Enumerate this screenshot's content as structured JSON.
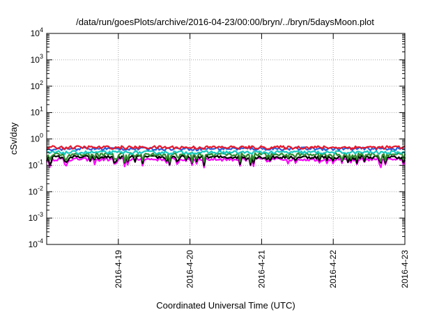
{
  "chart_data": {
    "type": "line",
    "title": "/data/run/goesPlots/archive/2016-04-23/00:00/bryn/../bryn/5daysMoon.plot",
    "xlabel": "Coordinated Universal Time (UTC)",
    "ylabel": "cSv/day",
    "yscale": "log",
    "ylim": [
      0.0001,
      10000
    ],
    "xlim": [
      "2016-04-18 00:00",
      "2016-04-23 00:00"
    ],
    "y_ticks": [
      {
        "base": "10",
        "exp": "-4"
      },
      {
        "base": "10",
        "exp": "-3"
      },
      {
        "base": "10",
        "exp": "-2"
      },
      {
        "base": "10",
        "exp": "-1"
      },
      {
        "base": "10",
        "exp": "0"
      },
      {
        "base": "10",
        "exp": "1"
      },
      {
        "base": "10",
        "exp": "2"
      },
      {
        "base": "10",
        "exp": "3"
      },
      {
        "base": "10",
        "exp": "4"
      }
    ],
    "x_ticks": [
      "2016-4-19",
      "2016-4-20",
      "2016-4-21",
      "2016-4-22",
      "2016-4-23"
    ],
    "grid": true,
    "legend": "none",
    "series": [
      {
        "color": "#e8192c",
        "level": 0.48
      },
      {
        "color": "#2b5fd9",
        "level": 0.43
      },
      {
        "color": "#19c9c0",
        "level": 0.31
      },
      {
        "color": "#2e8b2e",
        "level": 0.26
      },
      {
        "color": "#000000",
        "level": 0.205
      },
      {
        "color": "#ff00ff",
        "level": 0.17
      }
    ]
  }
}
